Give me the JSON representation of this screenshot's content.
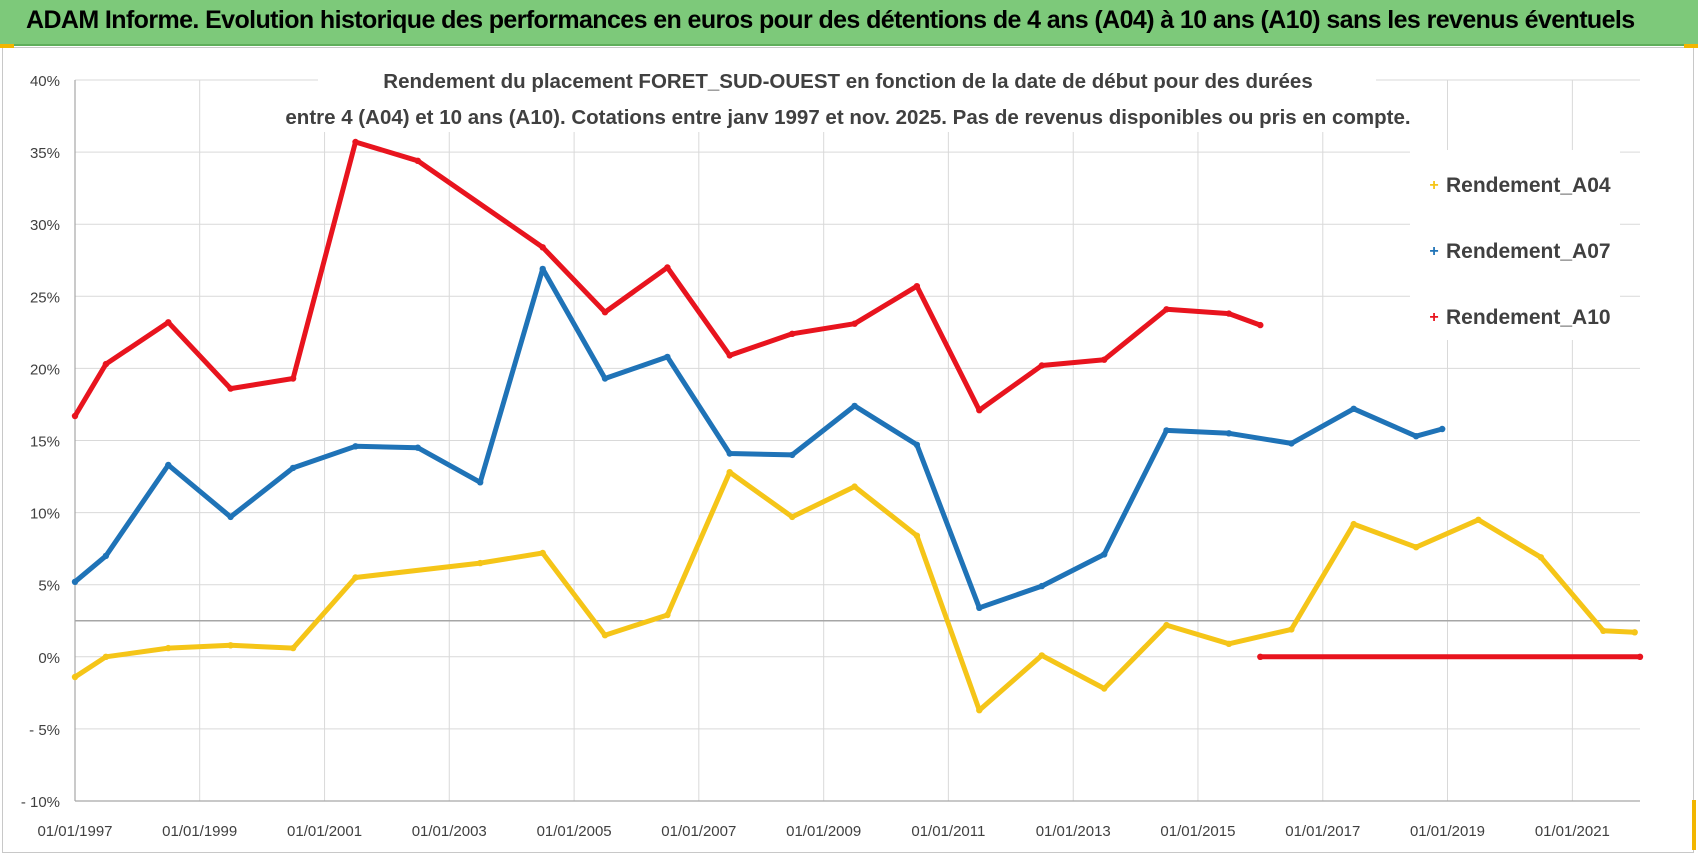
{
  "banner": {
    "title": "ADAM Informe. Evolution historique des performances en euros pour des détentions de 4 ans (A04) à 10 ans (A10) sans les revenus éventuels"
  },
  "colors": {
    "banner_bg": "#7dc97a",
    "A04": "#f5c518",
    "A07": "#1f73b7",
    "A10": "#e8141e",
    "grid": "#d9d9d9",
    "axis": "#a6a6a6"
  },
  "chart_data": {
    "type": "line",
    "title_lines": [
      "Rendement du placement FORET_SUD-OUEST en fonction de la date de début pour des durées",
      "entre 4 (A04) et 10 ans (A10). Cotations entre janv 1997 et nov. 2025. Pas de revenus disponibles ou pris en compte."
    ],
    "xlabel": "",
    "ylabel": "",
    "x_range": [
      "1997-01-01",
      "2022-02-01"
    ],
    "ylim": [
      -10,
      40
    ],
    "y_ticks": [
      "40%",
      "35%",
      "30%",
      "25%",
      "20%",
      "15%",
      "10%",
      "5%",
      "0%",
      "- 5%",
      "- 10%"
    ],
    "x_ticks": [
      "01/01/1997",
      "01/01/1999",
      "01/01/2001",
      "01/01/2003",
      "01/01/2005",
      "01/01/2007",
      "01/01/2009",
      "01/01/2011",
      "01/01/2013",
      "01/01/2015",
      "01/01/2017",
      "01/01/2019",
      "01/01/2021"
    ],
    "reference_line_y": 2.5,
    "grid": true,
    "legend_position": "right",
    "series": [
      {
        "name": "Rendement_A04",
        "color_key": "A04",
        "points": [
          [
            "1997-01-01",
            -1.4
          ],
          [
            "1997-07-01",
            0.0
          ],
          [
            "1998-07-01",
            0.6
          ],
          [
            "1999-07-01",
            0.8
          ],
          [
            "2000-07-01",
            0.6
          ],
          [
            "2001-07-01",
            5.5
          ],
          [
            "2003-07-01",
            6.5
          ],
          [
            "2004-07-01",
            7.2
          ],
          [
            "2005-07-01",
            1.5
          ],
          [
            "2006-07-01",
            2.9
          ],
          [
            "2007-07-01",
            12.8
          ],
          [
            "2008-07-01",
            9.7
          ],
          [
            "2009-07-01",
            11.8
          ],
          [
            "2010-07-01",
            8.4
          ],
          [
            "2011-07-01",
            -3.7
          ],
          [
            "2012-07-01",
            0.1
          ],
          [
            "2013-07-01",
            -2.2
          ],
          [
            "2014-07-01",
            2.2
          ],
          [
            "2015-07-01",
            0.9
          ],
          [
            "2016-07-01",
            1.9
          ],
          [
            "2017-07-01",
            9.2
          ],
          [
            "2018-07-01",
            7.6
          ],
          [
            "2019-07-01",
            9.5
          ],
          [
            "2020-07-01",
            6.9
          ],
          [
            "2021-07-01",
            1.8
          ],
          [
            "2022-01-01",
            1.7
          ]
        ]
      },
      {
        "name": "Rendement_A07",
        "color_key": "A07",
        "points": [
          [
            "1997-01-01",
            5.2
          ],
          [
            "1997-07-01",
            7.0
          ],
          [
            "1998-07-01",
            13.3
          ],
          [
            "1999-07-01",
            9.7
          ],
          [
            "2000-07-01",
            13.1
          ],
          [
            "2001-07-01",
            14.6
          ],
          [
            "2002-07-01",
            14.5
          ],
          [
            "2003-07-01",
            12.1
          ],
          [
            "2004-07-01",
            26.9
          ],
          [
            "2005-07-01",
            19.3
          ],
          [
            "2006-07-01",
            20.8
          ],
          [
            "2007-07-01",
            14.1
          ],
          [
            "2008-07-01",
            14.0
          ],
          [
            "2009-07-01",
            17.4
          ],
          [
            "2010-07-01",
            14.7
          ],
          [
            "2011-07-01",
            3.4
          ],
          [
            "2012-07-01",
            4.9
          ],
          [
            "2013-07-01",
            7.1
          ],
          [
            "2014-07-01",
            15.7
          ],
          [
            "2015-07-01",
            15.5
          ],
          [
            "2016-07-01",
            14.8
          ],
          [
            "2017-07-01",
            17.2
          ],
          [
            "2018-07-01",
            15.3
          ],
          [
            "2018-12-01",
            15.8
          ]
        ]
      },
      {
        "name": "Rendement_A10",
        "color_key": "A10",
        "points": [
          [
            "1997-01-01",
            16.7
          ],
          [
            "1997-07-01",
            20.3
          ],
          [
            "1998-07-01",
            23.2
          ],
          [
            "1999-07-01",
            18.6
          ],
          [
            "2000-07-01",
            19.3
          ],
          [
            "2001-07-01",
            35.7
          ],
          [
            "2002-07-01",
            34.4
          ],
          [
            "2004-07-01",
            28.4
          ],
          [
            "2005-07-01",
            23.9
          ],
          [
            "2006-07-01",
            27.0
          ],
          [
            "2007-07-01",
            20.9
          ],
          [
            "2008-07-01",
            22.4
          ],
          [
            "2009-07-01",
            23.1
          ],
          [
            "2010-07-01",
            25.7
          ],
          [
            "2011-07-01",
            17.1
          ],
          [
            "2012-07-01",
            20.2
          ],
          [
            "2013-07-01",
            20.6
          ],
          [
            "2014-07-01",
            24.1
          ],
          [
            "2015-07-01",
            23.8
          ],
          [
            "2016-01-01",
            23.0
          ]
        ]
      },
      {
        "name": "",
        "color_key": "A10",
        "points": [
          [
            "2016-01-01",
            0.0
          ],
          [
            "2022-02-01",
            0.0
          ]
        ]
      }
    ]
  }
}
